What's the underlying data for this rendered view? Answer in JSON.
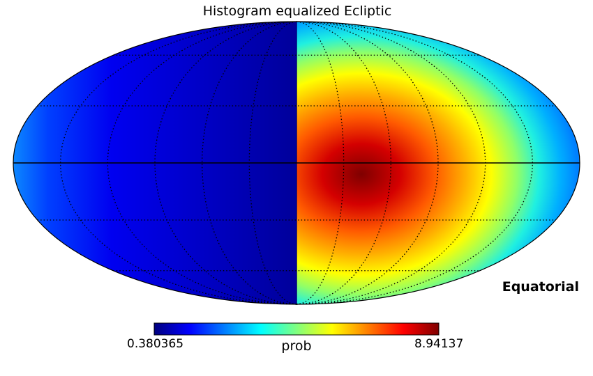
{
  "chart_data": {
    "type": "heatmap",
    "projection": "mollweide",
    "title": "Histogram equalized Ecliptic",
    "coord_label": "Equatorial",
    "colorbar": {
      "label": "prob",
      "min_label": "0.380365",
      "max_label": "8.94137",
      "min": 0.380365,
      "max": 8.94137,
      "colormap": "jet"
    },
    "field": {
      "description_values": "left hemisphere (lon 0..180 E) uniform minimum; right hemisphere shows dipole peaking near lon -45 deg, lat 0",
      "peak_lon_deg": -45,
      "peak_lat_deg": 0,
      "boundary_lon_deg": 0
    },
    "graticule": {
      "meridians_deg": [
        -150,
        -120,
        -90,
        -60,
        -30,
        0,
        30,
        60,
        90,
        120,
        150
      ],
      "parallels_deg": [
        -60,
        -30,
        0,
        30,
        60
      ],
      "style": "dotted"
    }
  }
}
